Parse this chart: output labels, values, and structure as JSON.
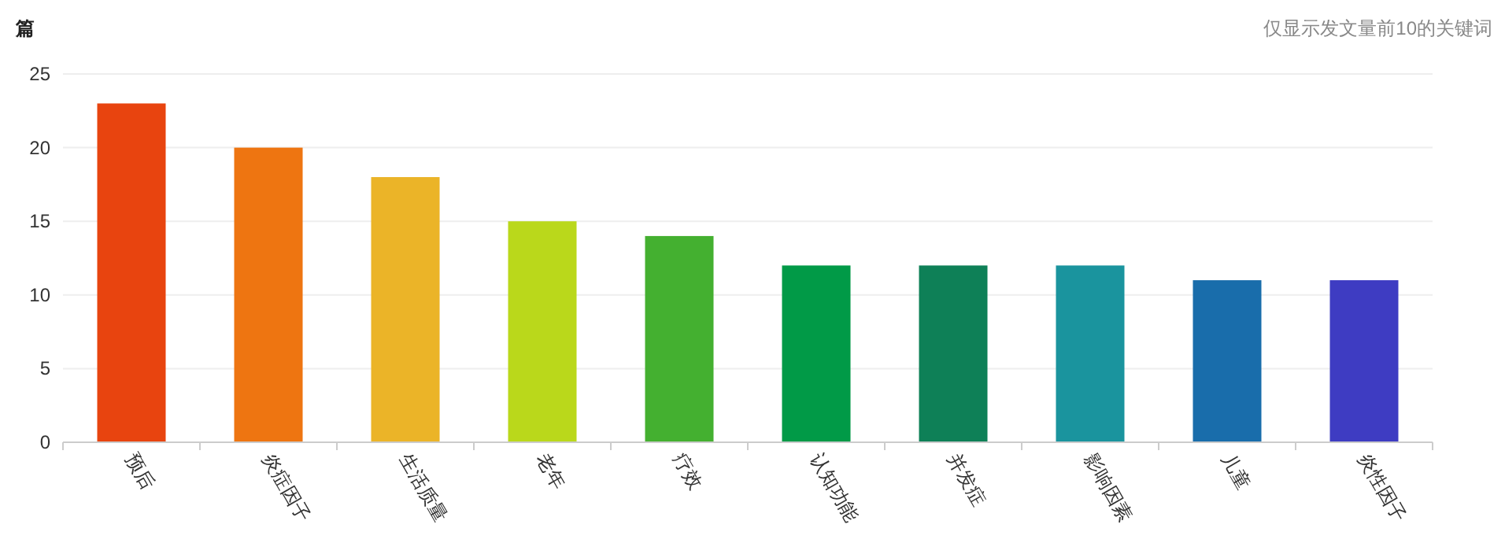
{
  "chart_data": {
    "type": "bar",
    "ylabel": "篇",
    "annotations": [
      "仅显示发文量前10的关键词"
    ],
    "categories": [
      "预后",
      "炎症因子",
      "生活质量",
      "老年",
      "疗效",
      "认知功能",
      "并发症",
      "影响因素",
      "儿童",
      "炎性因子"
    ],
    "values": [
      23,
      20,
      18,
      15,
      14,
      12,
      12,
      12,
      11,
      11
    ],
    "colors": [
      "#e8440f",
      "#ee7511",
      "#ebb428",
      "#bad81b",
      "#44b030",
      "#019a47",
      "#0e8057",
      "#1a949e",
      "#196dab",
      "#3e3cc2"
    ],
    "ylim": [
      0,
      25
    ],
    "yticks": [
      0,
      5,
      10,
      15,
      20,
      25
    ],
    "grid": "y"
  }
}
